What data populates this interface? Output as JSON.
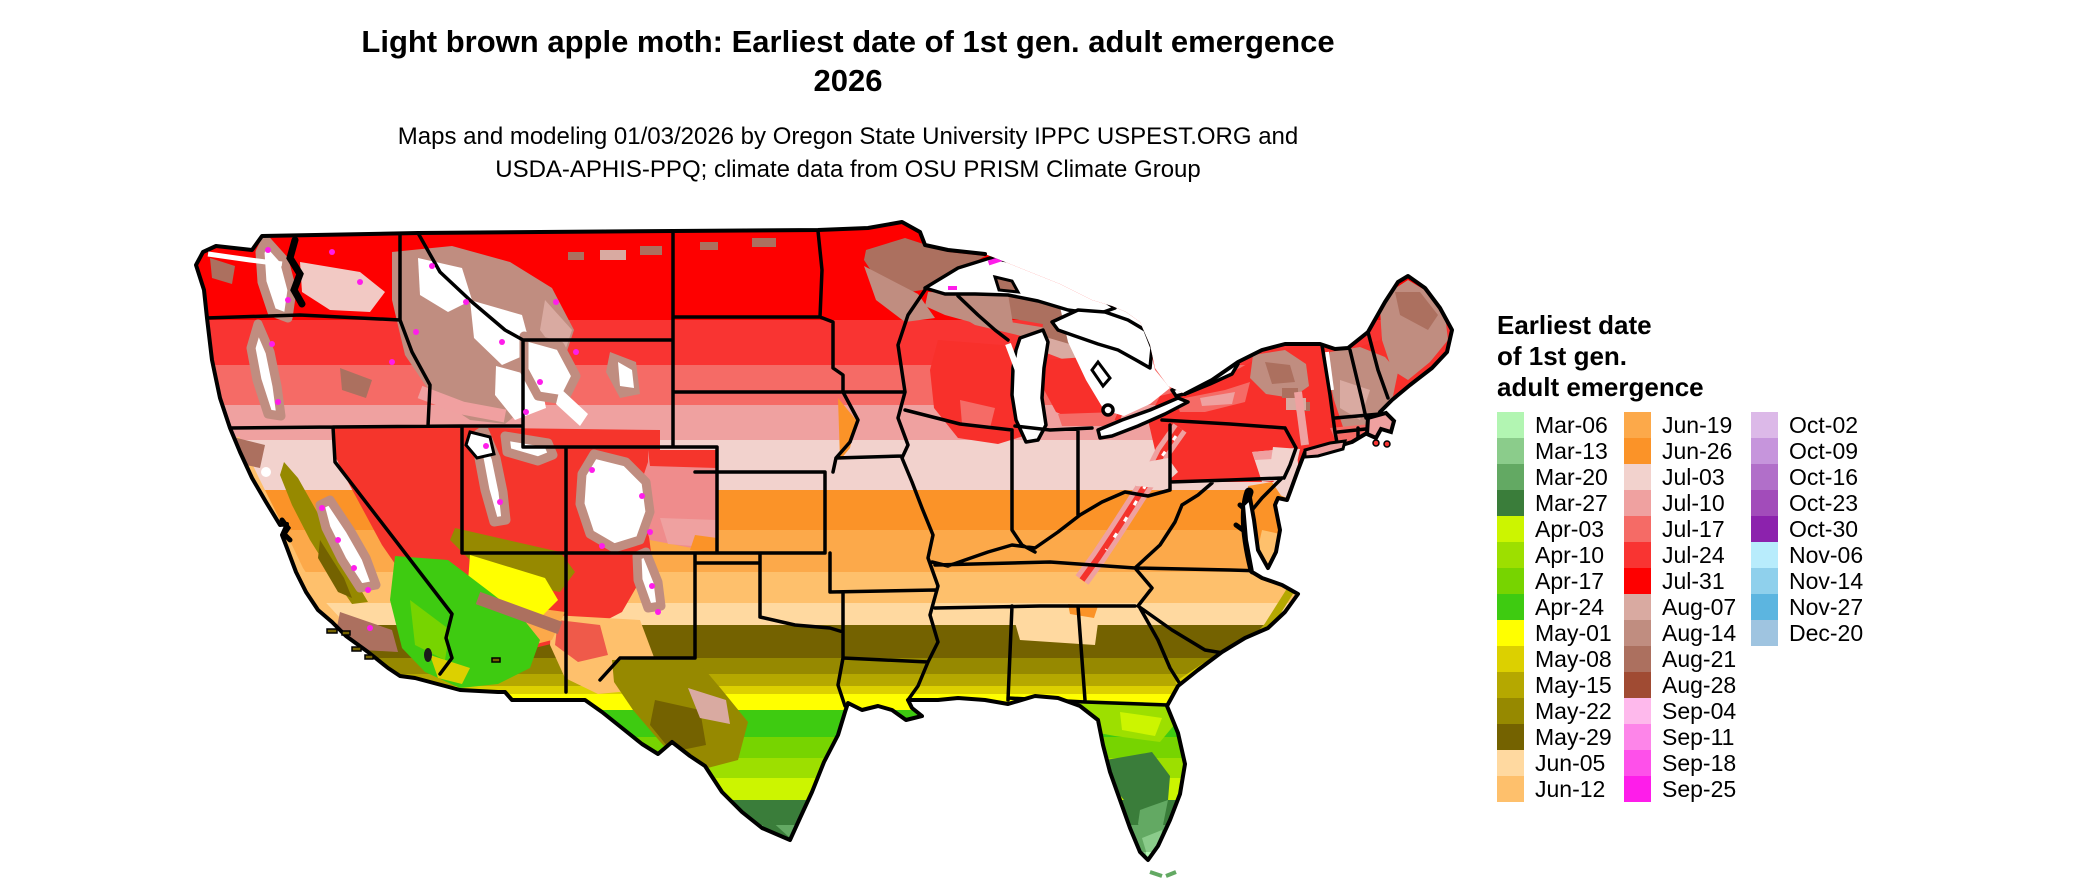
{
  "title": {
    "line1": "Light brown apple moth: Earliest date of 1st gen. adult emergence",
    "line2": "2026"
  },
  "subtitle": {
    "line1": "Maps and modeling 01/03/2026 by Oregon State University IPPC USPEST.ORG and",
    "line2": "USDA-APHIS-PPQ; climate data from OSU PRISM Climate Group"
  },
  "legend": {
    "title_lines": [
      "Earliest date",
      "of 1st gen.",
      "adult emergence"
    ],
    "columns": [
      [
        {
          "label": "Mar-06",
          "color": "#b2f5b2"
        },
        {
          "label": "Mar-13",
          "color": "#8bcc8b"
        },
        {
          "label": "Mar-20",
          "color": "#63a963"
        },
        {
          "label": "Mar-27",
          "color": "#3a7d3a"
        },
        {
          "label": "Apr-03",
          "color": "#ccf500"
        },
        {
          "label": "Apr-10",
          "color": "#9ddf00"
        },
        {
          "label": "Apr-17",
          "color": "#77d400"
        },
        {
          "label": "Apr-24",
          "color": "#3ecb11"
        },
        {
          "label": "May-01",
          "color": "#ffff00"
        },
        {
          "label": "May-08",
          "color": "#dcd000"
        },
        {
          "label": "May-15",
          "color": "#b5a800"
        },
        {
          "label": "May-22",
          "color": "#968900"
        },
        {
          "label": "May-29",
          "color": "#746200"
        },
        {
          "label": "Jun-05",
          "color": "#ffd9a0"
        },
        {
          "label": "Jun-12",
          "color": "#fec06c"
        }
      ],
      [
        {
          "label": "Jun-19",
          "color": "#fca94a"
        },
        {
          "label": "Jun-26",
          "color": "#fb9328"
        },
        {
          "label": "Jul-03",
          "color": "#f2d2cd"
        },
        {
          "label": "Jul-10",
          "color": "#efa1a0"
        },
        {
          "label": "Jul-17",
          "color": "#f56b66"
        },
        {
          "label": "Jul-24",
          "color": "#f93432"
        },
        {
          "label": "Jul-31",
          "color": "#fe0000"
        },
        {
          "label": "Aug-07",
          "color": "#d9aaa1"
        },
        {
          "label": "Aug-14",
          "color": "#c08d80"
        },
        {
          "label": "Aug-21",
          "color": "#ac705f"
        },
        {
          "label": "Aug-28",
          "color": "#a04b33"
        },
        {
          "label": "Sep-04",
          "color": "#feb9ec"
        },
        {
          "label": "Sep-11",
          "color": "#fd85e9"
        },
        {
          "label": "Sep-18",
          "color": "#fe50ea"
        },
        {
          "label": "Sep-25",
          "color": "#fe1dea"
        }
      ],
      [
        {
          "label": "Oct-02",
          "color": "#dcb9e8"
        },
        {
          "label": "Oct-09",
          "color": "#c695dc"
        },
        {
          "label": "Oct-16",
          "color": "#b16fc9"
        },
        {
          "label": "Oct-23",
          "color": "#a24cba"
        },
        {
          "label": "Oct-30",
          "color": "#8c22ad"
        },
        {
          "label": "Nov-06",
          "color": "#b8ecfc"
        },
        {
          "label": "Nov-14",
          "color": "#8fd0ec"
        },
        {
          "label": "Nov-27",
          "color": "#5cb5e0"
        },
        {
          "label": "Dec-20",
          "color": "#9fc4e0"
        }
      ]
    ]
  },
  "map": {
    "region": "Continental United States",
    "kind": "raster choropleth of earliest adult emergence date"
  }
}
